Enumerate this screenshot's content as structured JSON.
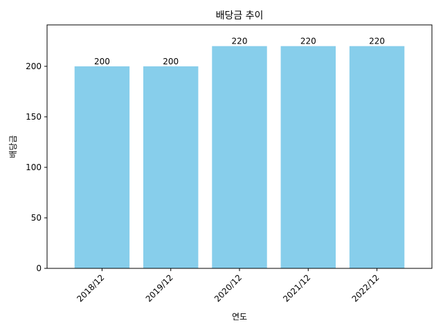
{
  "chart_data": {
    "type": "bar",
    "title": "배당금 추이",
    "xlabel": "연도",
    "ylabel": "배당금",
    "categories": [
      "2018/12",
      "2019/12",
      "2020/12",
      "2021/12",
      "2022/12"
    ],
    "values": [
      200,
      200,
      220,
      220,
      220
    ],
    "ylim": [
      0,
      241
    ],
    "yticks": [
      0,
      50,
      100,
      150,
      200
    ],
    "bar_color": "#87CEEB",
    "grid": false,
    "legend": "none"
  }
}
